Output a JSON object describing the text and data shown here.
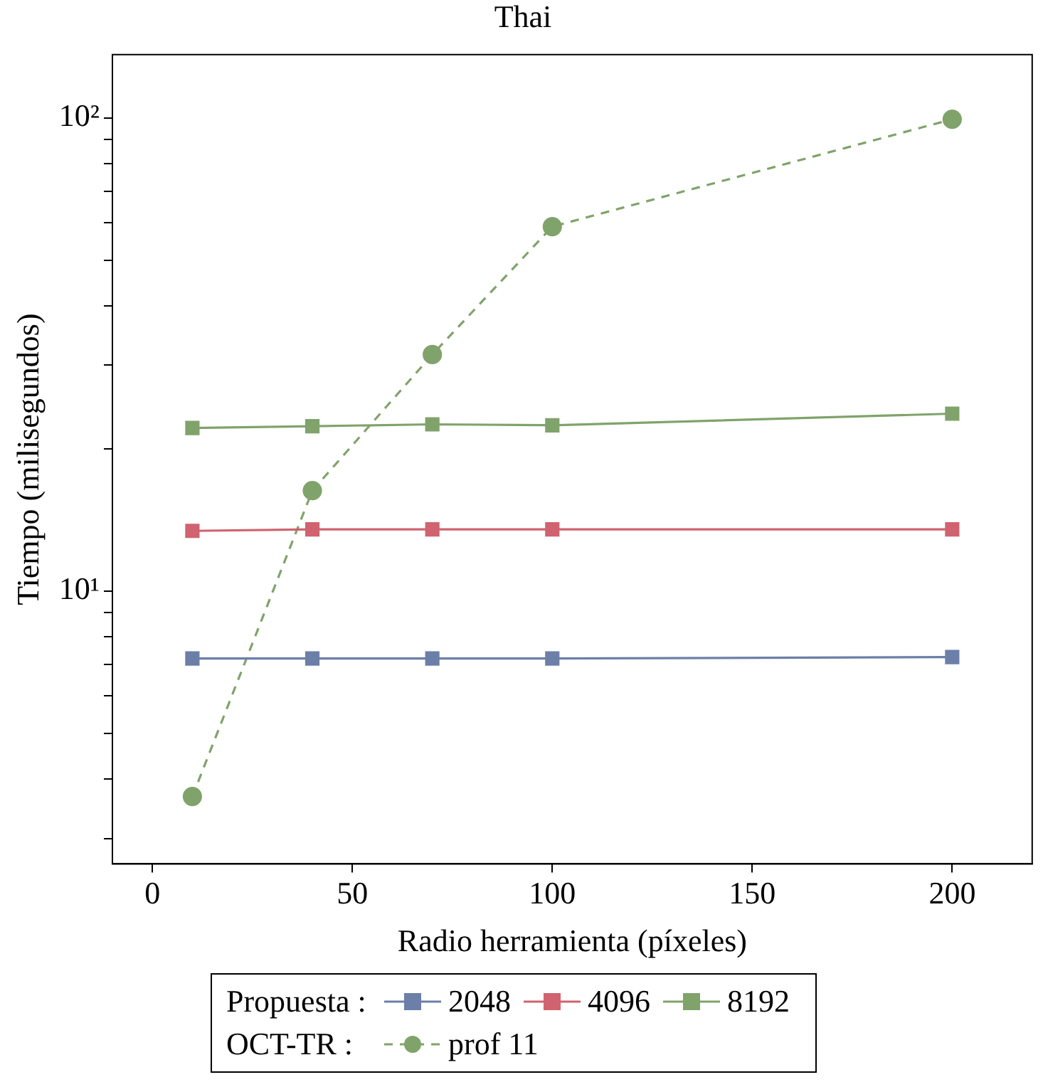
{
  "chart_data": {
    "type": "line",
    "title": "Thai",
    "xlabel": "Radio herramienta (píxeles)",
    "ylabel": "Tiempo (milisegundos)",
    "log": "y",
    "grid": false,
    "legend": "bottom",
    "x": [
      10,
      40,
      70,
      100,
      200
    ],
    "xlim": [
      -10,
      220
    ],
    "xticks": [
      0,
      50,
      100,
      150,
      200
    ],
    "ylim": [
      2.65,
      136
    ],
    "yticks": [
      {
        "value": 3,
        "label": null
      },
      {
        "value": 4,
        "label": null
      },
      {
        "value": 5,
        "label": null
      },
      {
        "value": 6,
        "label": null
      },
      {
        "value": 7,
        "label": null
      },
      {
        "value": 8,
        "label": null
      },
      {
        "value": 9,
        "label": null
      },
      {
        "value": 10,
        "label": "10¹"
      },
      {
        "value": 20,
        "label": null
      },
      {
        "value": 30,
        "label": null
      },
      {
        "value": 40,
        "label": null
      },
      {
        "value": 50,
        "label": null
      },
      {
        "value": 60,
        "label": null
      },
      {
        "value": 70,
        "label": null
      },
      {
        "value": 80,
        "label": null
      },
      {
        "value": 90,
        "label": null
      },
      {
        "value": 100,
        "label": "10²"
      }
    ],
    "annotations": [
      "Propuesta :",
      "OCT-TR :"
    ],
    "series": [
      {
        "name": "2048",
        "color": "#6c7fa8",
        "marker": "square",
        "line_style": "solid",
        "values": [
          7.2,
          7.2,
          7.2,
          7.2,
          7.25
        ]
      },
      {
        "name": "4096",
        "color": "#d0636f",
        "marker": "square",
        "line_style": "solid",
        "values": [
          13.4,
          13.5,
          13.5,
          13.5,
          13.5
        ]
      },
      {
        "name": "8192",
        "color": "#80a36b",
        "marker": "square",
        "line_style": "solid",
        "values": [
          22.1,
          22.3,
          22.5,
          22.4,
          23.7
        ]
      },
      {
        "name": "prof 11",
        "color": "#80a36b",
        "marker": "circle",
        "line_style": "dashed",
        "values": [
          3.68,
          16.3,
          31.6,
          58.9,
          99.3
        ]
      }
    ]
  }
}
